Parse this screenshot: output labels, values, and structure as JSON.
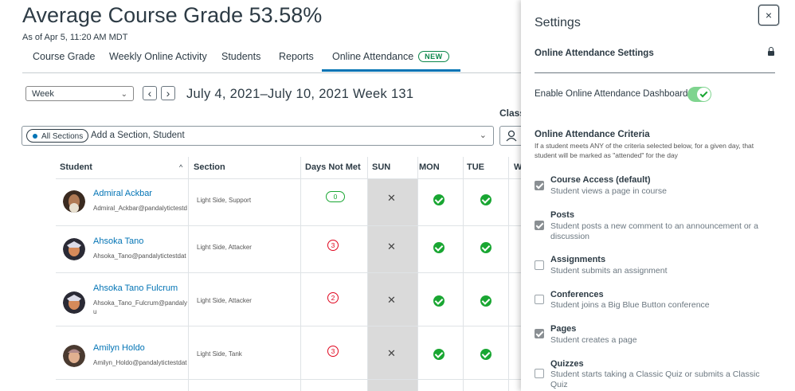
{
  "header": {
    "title": "Average Course Grade  53.58%",
    "as_of": "As of Apr 5, 11:20 AM MDT"
  },
  "tabs": [
    {
      "label": "Course Grade"
    },
    {
      "label": "Weekly Online Activity"
    },
    {
      "label": "Students"
    },
    {
      "label": "Reports"
    },
    {
      "label": "Online Attendance",
      "badge": "NEW",
      "active": true
    }
  ],
  "controls": {
    "week_select": "Week",
    "prev": "‹",
    "next": "›",
    "date_range": "July 4, 2021–July 10, 2021 Week 131",
    "class_label": "Class",
    "all_sections": "All Sections",
    "filter_placeholder": "Add a Section, Student"
  },
  "table": {
    "headers": [
      "Student",
      "Section",
      "Days Not Met",
      "SUN",
      "MON",
      "TUE",
      "W"
    ],
    "sort_indicator": "^",
    "rows": [
      {
        "name": "Admiral Ackbar",
        "email": "Admiral_Ackbar@pandalytictestd",
        "section": "Light Side, Support",
        "days_not_met": "0",
        "sun": "x",
        "mon": "check",
        "tue": "check"
      },
      {
        "name": "Ahsoka Tano",
        "email": "Ahsoka_Tano@pandalytictestdat",
        "section": "Light Side, Attacker",
        "days_not_met": "3",
        "sun": "x",
        "mon": "check",
        "tue": "check"
      },
      {
        "name": "Ahsoka Tano Fulcrum",
        "email": "Ahsoka_Tano_Fulcrum@pandaly u",
        "section": "Light Side, Attacker",
        "days_not_met": "2",
        "sun": "x",
        "mon": "check",
        "tue": "check"
      },
      {
        "name": "Amilyn Holdo",
        "email": "Amilyn_Holdo@pandalytictestdat",
        "section": "Light Side, Tank",
        "days_not_met": "3",
        "sun": "x",
        "mon": "check",
        "tue": "check"
      }
    ]
  },
  "settings": {
    "title": "Settings",
    "close": "×",
    "section_title": "Online Attendance Settings",
    "enable_label": "Enable Online Attendance Dashboard",
    "enabled": true,
    "criteria_title": "Online Attendance Criteria",
    "criteria_desc": "If a student meets ANY of the criteria selected below, for a given day, that student will be marked as \"attended\" for the day",
    "criteria": [
      {
        "name": "Course Access (default)",
        "desc": "Student views a page in course",
        "checked": true
      },
      {
        "name": "Posts",
        "desc": "Student posts a new comment to an announcement or a discussion",
        "checked": true
      },
      {
        "name": "Assignments",
        "desc": "Student submits an assignment",
        "checked": false
      },
      {
        "name": "Conferences",
        "desc": "Student joins a Big Blue Button conference",
        "checked": false
      },
      {
        "name": "Pages",
        "desc": "Student creates a page",
        "checked": true
      },
      {
        "name": "Quizzes",
        "desc": "Student starts taking a Classic Quiz or submits a Classic Quiz",
        "checked": false
      }
    ]
  },
  "colors": {
    "link": "#0374b5",
    "success": "#19a632",
    "danger": "#e0061f",
    "text": "#2d3b45"
  }
}
